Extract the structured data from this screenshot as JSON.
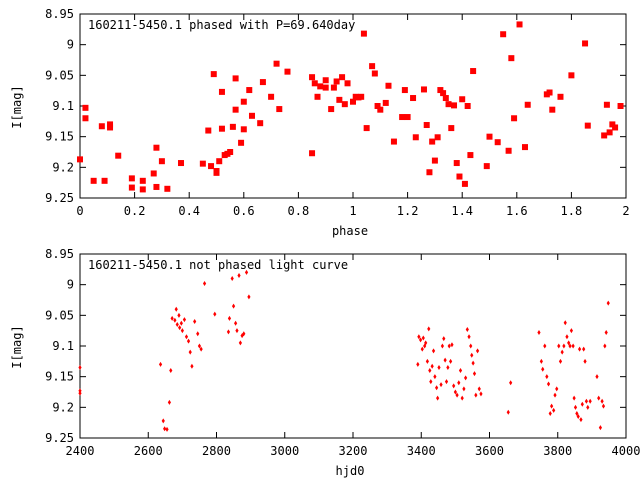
{
  "colors": {
    "marker": "#ff0000",
    "axis": "#000000",
    "background": "#ffffff"
  },
  "chart_data": [
    {
      "type": "scatter",
      "title": "160211-5450.1 phased with P=69.640day",
      "xlabel": "phase",
      "ylabel": "I[mag]",
      "xlim": [
        0,
        2
      ],
      "ylim": [
        9.25,
        8.95
      ],
      "y_inverted": true,
      "xticks": [
        "0",
        "0.2",
        "0.4",
        "0.6",
        "0.8",
        "1",
        "1.2",
        "1.4",
        "1.6",
        "1.8",
        "2"
      ],
      "yticks": [
        "8.95",
        "9",
        "9.05",
        "9.1",
        "9.15",
        "9.2",
        "9.25"
      ],
      "grid": false,
      "marker": "filled-square",
      "series": [
        {
          "points": [
            [
              0.0,
              9.187
            ],
            [
              0.02,
              9.103
            ],
            [
              0.02,
              9.12
            ],
            [
              0.05,
              9.222
            ],
            [
              0.08,
              9.133
            ],
            [
              0.09,
              9.222
            ],
            [
              0.11,
              9.13
            ],
            [
              0.11,
              9.135
            ],
            [
              0.14,
              9.181
            ],
            [
              0.19,
              9.218
            ],
            [
              0.19,
              9.233
            ],
            [
              0.23,
              9.222
            ],
            [
              0.23,
              9.236
            ],
            [
              0.27,
              9.21
            ],
            [
              0.28,
              9.168
            ],
            [
              0.28,
              9.232
            ],
            [
              0.3,
              9.19
            ],
            [
              0.32,
              9.235
            ],
            [
              0.37,
              9.193
            ],
            [
              0.45,
              9.194
            ],
            [
              0.47,
              9.14
            ],
            [
              0.48,
              9.198
            ],
            [
              0.49,
              9.048
            ],
            [
              0.5,
              9.206
            ],
            [
              0.5,
              9.209
            ],
            [
              0.51,
              9.19
            ],
            [
              0.52,
              9.137
            ],
            [
              0.52,
              9.077
            ],
            [
              0.53,
              9.18
            ],
            [
              0.54,
              9.178
            ],
            [
              0.55,
              9.175
            ],
            [
              0.56,
              9.134
            ],
            [
              0.57,
              9.055
            ],
            [
              0.57,
              9.106
            ],
            [
              0.59,
              9.16
            ],
            [
              0.6,
              9.138
            ],
            [
              0.6,
              9.093
            ],
            [
              0.62,
              9.074
            ],
            [
              0.63,
              9.116
            ],
            [
              0.66,
              9.128
            ],
            [
              0.67,
              9.061
            ],
            [
              0.7,
              9.085
            ],
            [
              0.72,
              9.031
            ],
            [
              0.73,
              9.105
            ],
            [
              0.76,
              9.044
            ],
            [
              0.85,
              9.177
            ],
            [
              0.85,
              9.053
            ],
            [
              0.86,
              9.063
            ],
            [
              0.87,
              9.085
            ],
            [
              0.88,
              9.068
            ],
            [
              0.9,
              9.07
            ],
            [
              0.9,
              9.058
            ],
            [
              0.92,
              9.105
            ],
            [
              0.93,
              9.07
            ],
            [
              0.94,
              9.06
            ],
            [
              0.95,
              9.09
            ],
            [
              0.96,
              9.053
            ],
            [
              0.97,
              9.097
            ],
            [
              0.98,
              9.063
            ],
            [
              1.0,
              9.093
            ],
            [
              1.01,
              9.085
            ],
            [
              1.02,
              9.086
            ],
            [
              1.03,
              9.085
            ],
            [
              1.04,
              8.982
            ],
            [
              1.05,
              9.136
            ],
            [
              1.07,
              9.035
            ],
            [
              1.08,
              9.047
            ],
            [
              1.09,
              9.1
            ],
            [
              1.1,
              9.106
            ],
            [
              1.12,
              9.095
            ],
            [
              1.13,
              9.067
            ],
            [
              1.15,
              9.158
            ],
            [
              1.18,
              9.118
            ],
            [
              1.19,
              9.074
            ],
            [
              1.2,
              9.118
            ],
            [
              1.22,
              9.087
            ],
            [
              1.23,
              9.151
            ],
            [
              1.26,
              9.073
            ],
            [
              1.27,
              9.131
            ],
            [
              1.28,
              9.208
            ],
            [
              1.29,
              9.158
            ],
            [
              1.3,
              9.189
            ],
            [
              1.31,
              9.151
            ],
            [
              1.32,
              9.074
            ],
            [
              1.33,
              9.079
            ],
            [
              1.34,
              9.087
            ],
            [
              1.35,
              9.097
            ],
            [
              1.36,
              9.136
            ],
            [
              1.37,
              9.099
            ],
            [
              1.38,
              9.193
            ],
            [
              1.39,
              9.215
            ],
            [
              1.4,
              9.089
            ],
            [
              1.41,
              9.227
            ],
            [
              1.42,
              9.1
            ],
            [
              1.43,
              9.18
            ],
            [
              1.44,
              9.043
            ],
            [
              1.49,
              9.198
            ],
            [
              1.5,
              9.15
            ],
            [
              1.53,
              9.159
            ],
            [
              1.55,
              8.983
            ],
            [
              1.57,
              9.173
            ],
            [
              1.58,
              9.022
            ],
            [
              1.59,
              9.12
            ],
            [
              1.61,
              8.967
            ],
            [
              1.63,
              9.167
            ],
            [
              1.64,
              9.098
            ],
            [
              1.71,
              9.081
            ],
            [
              1.72,
              9.078
            ],
            [
              1.73,
              9.106
            ],
            [
              1.76,
              9.085
            ],
            [
              1.8,
              9.05
            ],
            [
              1.85,
              8.998
            ],
            [
              1.86,
              9.132
            ],
            [
              1.92,
              9.148
            ],
            [
              1.93,
              9.098
            ],
            [
              1.94,
              9.143
            ],
            [
              1.95,
              9.13
            ],
            [
              1.96,
              9.135
            ],
            [
              1.98,
              9.1
            ]
          ]
        }
      ]
    },
    {
      "type": "scatter",
      "title": "160211-5450.1 not phased light curve",
      "xlabel": "hjd0",
      "ylabel": "I[mag]",
      "xlim": [
        2400,
        4000
      ],
      "ylim": [
        9.25,
        8.95
      ],
      "y_inverted": true,
      "xticks": [
        "2400",
        "2600",
        "2800",
        "3000",
        "3200",
        "3400",
        "3600",
        "3800",
        "4000"
      ],
      "yticks": [
        "8.95",
        "9",
        "9.05",
        "9.1",
        "9.15",
        "9.2",
        "9.25"
      ],
      "grid": false,
      "marker": "small-diamond",
      "series": [
        {
          "points": [
            [
              2400,
              9.135
            ],
            [
              2400,
              9.173
            ],
            [
              2400,
              9.177
            ],
            [
              2636,
              9.13
            ],
            [
              2644,
              9.222
            ],
            [
              2648,
              9.235
            ],
            [
              2655,
              9.236
            ],
            [
              2662,
              9.192
            ],
            [
              2666,
              9.14
            ],
            [
              2670,
              9.055
            ],
            [
              2678,
              9.058
            ],
            [
              2682,
              9.04
            ],
            [
              2685,
              9.065
            ],
            [
              2690,
              9.05
            ],
            [
              2692,
              9.07
            ],
            [
              2697,
              9.063
            ],
            [
              2700,
              9.075
            ],
            [
              2706,
              9.057
            ],
            [
              2712,
              9.085
            ],
            [
              2718,
              9.092
            ],
            [
              2723,
              9.11
            ],
            [
              2728,
              9.133
            ],
            [
              2736,
              9.06
            ],
            [
              2745,
              9.08
            ],
            [
              2750,
              9.1
            ],
            [
              2755,
              9.105
            ],
            [
              2765,
              8.998
            ],
            [
              2795,
              9.048
            ],
            [
              2835,
              9.077
            ],
            [
              2838,
              9.055
            ],
            [
              2846,
              8.99
            ],
            [
              2850,
              9.035
            ],
            [
              2856,
              9.063
            ],
            [
              2860,
              9.075
            ],
            [
              2866,
              8.985
            ],
            [
              2870,
              9.095
            ],
            [
              2875,
              9.083
            ],
            [
              2880,
              9.08
            ],
            [
              2888,
              8.98
            ],
            [
              2895,
              9.02
            ],
            [
              3390,
              9.13
            ],
            [
              3393,
              9.085
            ],
            [
              3398,
              9.09
            ],
            [
              3403,
              9.105
            ],
            [
              3406,
              9.087
            ],
            [
              3410,
              9.1
            ],
            [
              3413,
              9.095
            ],
            [
              3418,
              9.125
            ],
            [
              3422,
              9.072
            ],
            [
              3425,
              9.14
            ],
            [
              3428,
              9.158
            ],
            [
              3432,
              9.133
            ],
            [
              3436,
              9.108
            ],
            [
              3440,
              9.15
            ],
            [
              3445,
              9.168
            ],
            [
              3448,
              9.185
            ],
            [
              3452,
              9.135
            ],
            [
              3458,
              9.163
            ],
            [
              3462,
              9.1
            ],
            [
              3466,
              9.088
            ],
            [
              3470,
              9.123
            ],
            [
              3474,
              9.158
            ],
            [
              3478,
              9.135
            ],
            [
              3482,
              9.1
            ],
            [
              3486,
              9.125
            ],
            [
              3490,
              9.098
            ],
            [
              3495,
              9.165
            ],
            [
              3500,
              9.175
            ],
            [
              3505,
              9.18
            ],
            [
              3510,
              9.16
            ],
            [
              3515,
              9.14
            ],
            [
              3520,
              9.185
            ],
            [
              3525,
              9.17
            ],
            [
              3530,
              9.152
            ],
            [
              3535,
              9.073
            ],
            [
              3540,
              9.085
            ],
            [
              3545,
              9.1
            ],
            [
              3548,
              9.115
            ],
            [
              3552,
              9.128
            ],
            [
              3556,
              9.145
            ],
            [
              3560,
              9.18
            ],
            [
              3565,
              9.108
            ],
            [
              3570,
              9.17
            ],
            [
              3575,
              9.178
            ],
            [
              3655,
              9.208
            ],
            [
              3662,
              9.16
            ],
            [
              3745,
              9.078
            ],
            [
              3752,
              9.125
            ],
            [
              3756,
              9.138
            ],
            [
              3762,
              9.1
            ],
            [
              3768,
              9.15
            ],
            [
              3773,
              9.162
            ],
            [
              3778,
              9.21
            ],
            [
              3782,
              9.198
            ],
            [
              3788,
              9.205
            ],
            [
              3792,
              9.18
            ],
            [
              3797,
              9.17
            ],
            [
              3803,
              9.1
            ],
            [
              3808,
              9.125
            ],
            [
              3813,
              9.11
            ],
            [
              3818,
              9.1
            ],
            [
              3822,
              9.062
            ],
            [
              3827,
              9.085
            ],
            [
              3832,
              9.095
            ],
            [
              3836,
              9.1
            ],
            [
              3840,
              9.075
            ],
            [
              3845,
              9.1
            ],
            [
              3848,
              9.185
            ],
            [
              3852,
              9.2
            ],
            [
              3856,
              9.21
            ],
            [
              3860,
              9.215
            ],
            [
              3864,
              9.105
            ],
            [
              3868,
              9.22
            ],
            [
              3872,
              9.195
            ],
            [
              3876,
              9.105
            ],
            [
              3880,
              9.125
            ],
            [
              3884,
              9.19
            ],
            [
              3888,
              9.2
            ],
            [
              3895,
              9.19
            ],
            [
              3915,
              9.15
            ],
            [
              3920,
              9.185
            ],
            [
              3925,
              9.233
            ],
            [
              3930,
              9.19
            ],
            [
              3934,
              9.198
            ],
            [
              3938,
              9.1
            ],
            [
              3942,
              9.078
            ],
            [
              3948,
              9.03
            ]
          ]
        }
      ]
    }
  ]
}
